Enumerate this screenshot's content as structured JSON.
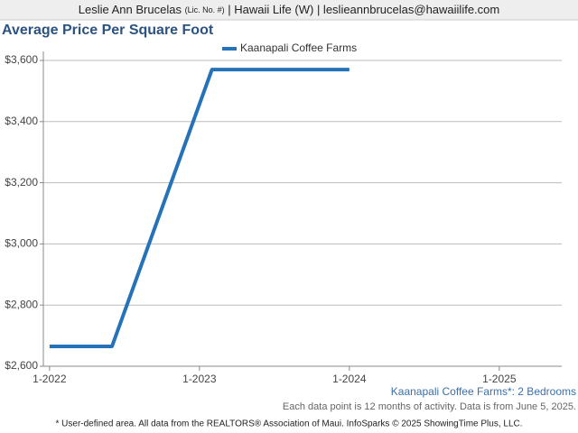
{
  "header": {
    "name": "Leslie Ann Brucelas",
    "license": "(Lic. No. #)",
    "rest": "| Hawaii Life (W) | leslieannbrucelas@hawaiilife.com"
  },
  "chart_data": {
    "type": "line",
    "title": "Average Price Per Square Foot",
    "x": [
      "1-2022",
      "6-2022",
      "2-2023",
      "1-2024"
    ],
    "series": [
      {
        "name": "Kaanapali Coffee Farms",
        "color": "#2672b8",
        "values": [
          2665,
          2665,
          3570,
          3570
        ]
      }
    ],
    "xlim": [
      "12-2021",
      "6-2025"
    ],
    "xticks": [
      "1-2022",
      "1-2023",
      "1-2024",
      "1-2025"
    ],
    "ylim": [
      2600,
      3600
    ],
    "yticks": [
      {
        "value": 2600,
        "label": "$2,600"
      },
      {
        "value": 2800,
        "label": "$2,800"
      },
      {
        "value": 3000,
        "label": "$3,000"
      },
      {
        "value": 3200,
        "label": "$3,200"
      },
      {
        "value": 3400,
        "label": "$3,400"
      },
      {
        "value": 3600,
        "label": "$3,600"
      }
    ],
    "grid": true
  },
  "footer": {
    "area": "Kaanapali Coffee Farms*: 2 Bedrooms",
    "note": "Each data point is 12 months of activity. Data is from June 5, 2025.",
    "credit": "* User-defined area. All data from the REALTORS® Association of Maui. InfoSparks © 2025 ShowingTime Plus, LLC."
  }
}
